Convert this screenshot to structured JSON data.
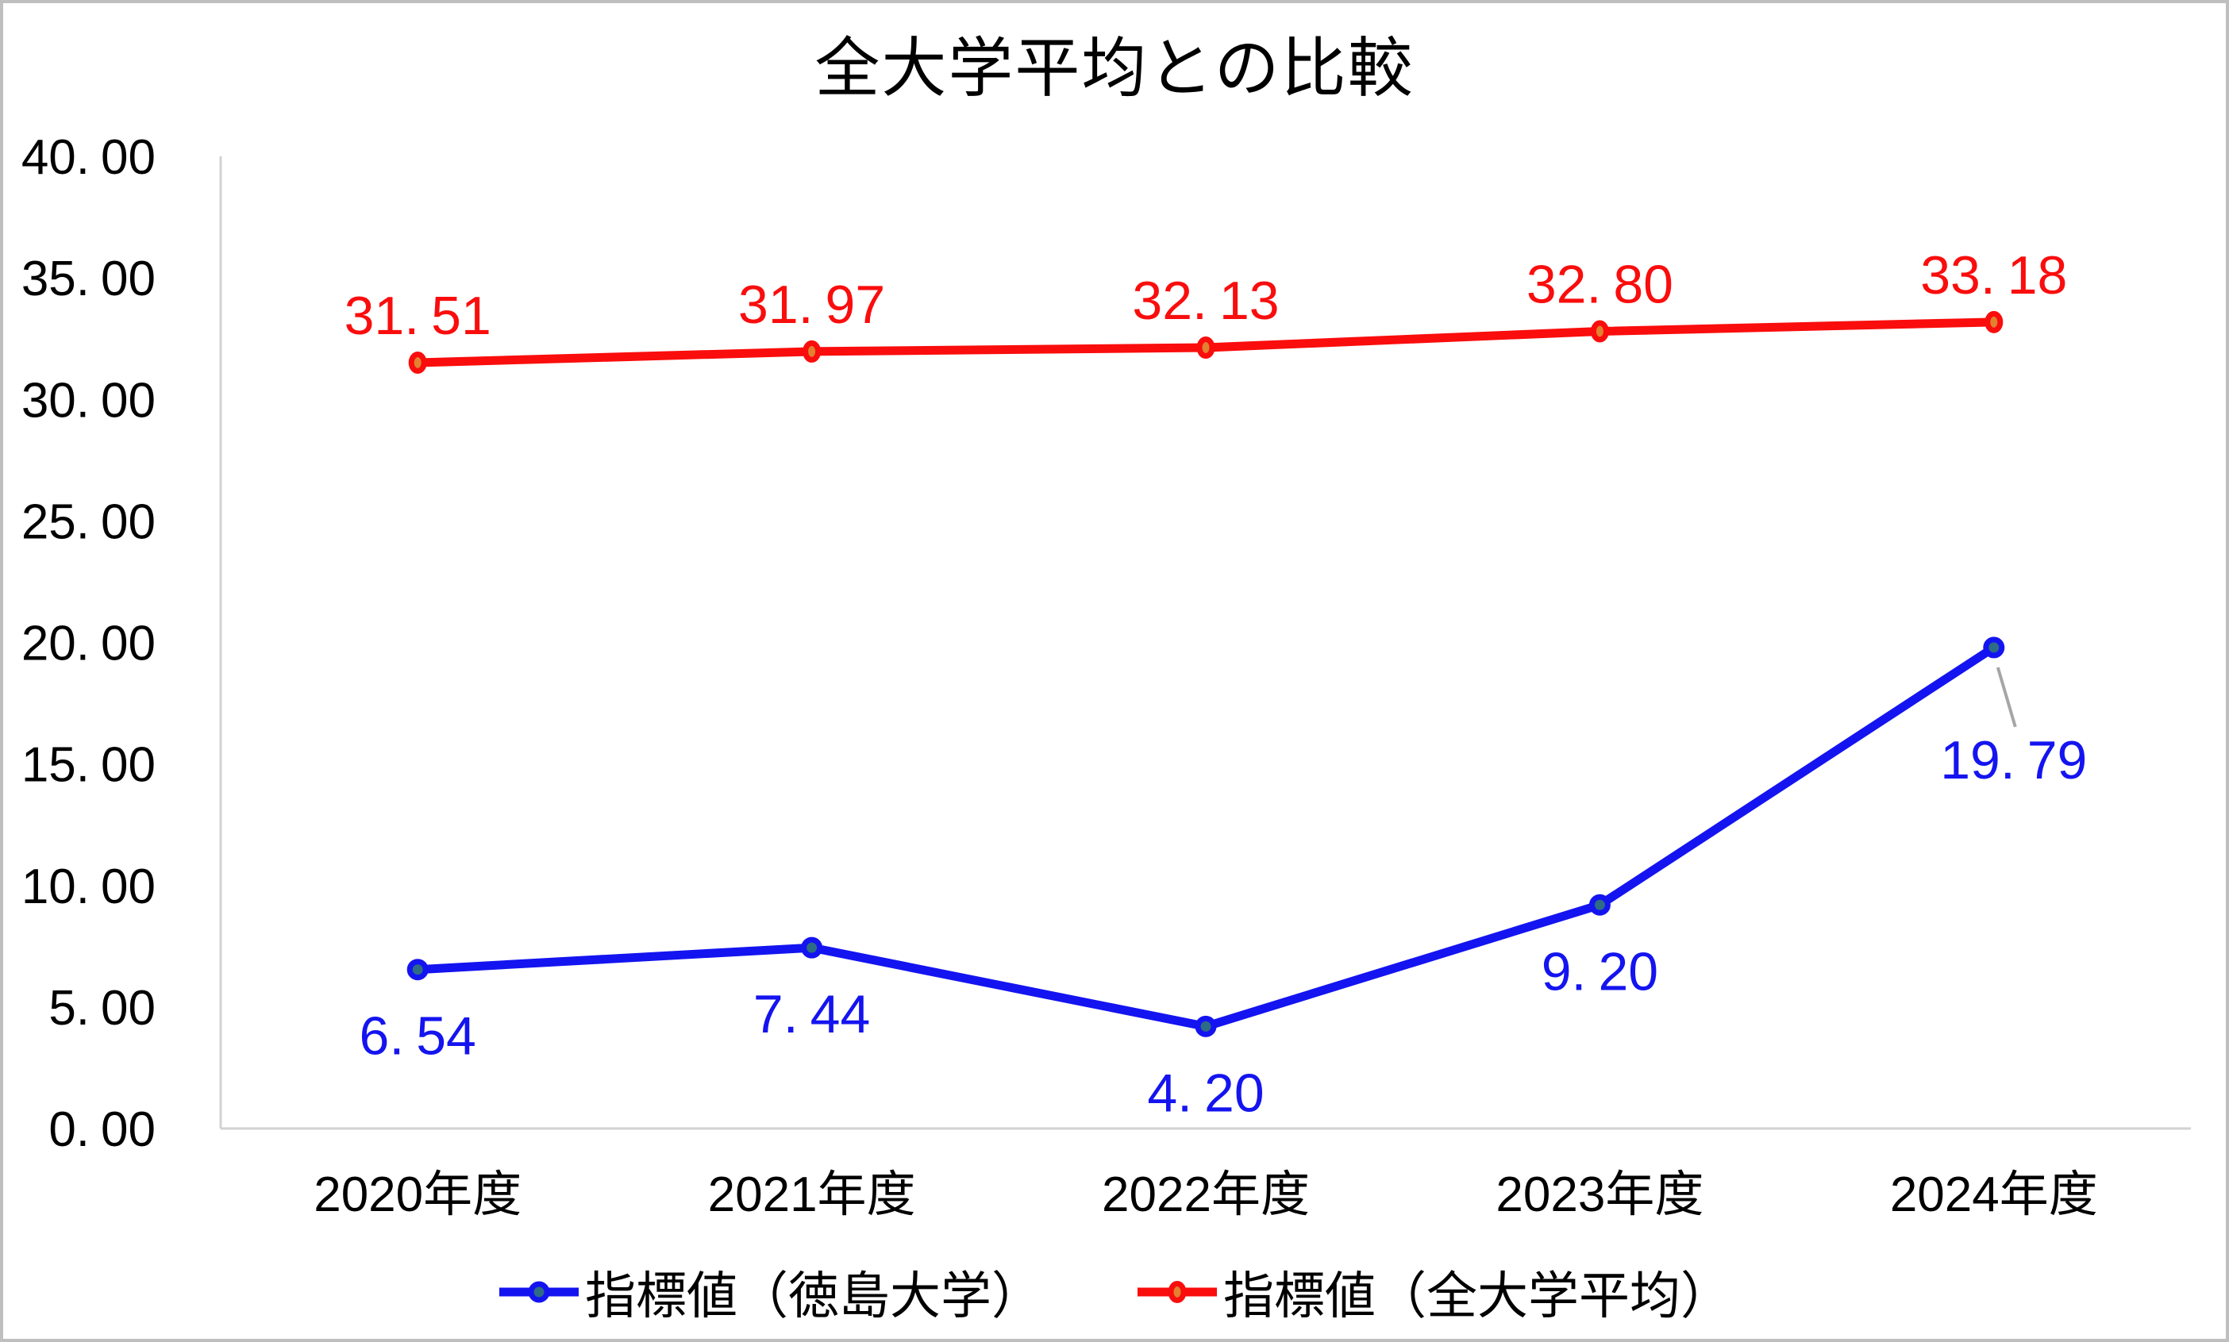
{
  "chart_data": {
    "type": "line",
    "title": "全大学平均との比較",
    "categories": [
      "2020年度",
      "2021年度",
      "2022年度",
      "2023年度",
      "2024年度"
    ],
    "series": [
      {
        "name": "指標値（徳島大学）",
        "values": [
          6.54,
          7.44,
          4.2,
          9.2,
          19.79
        ],
        "data_labels": [
          "6.54",
          "7.44",
          "4.20",
          "9.20",
          "19.79"
        ],
        "label_position": "below",
        "line_color": "#1414F0",
        "marker_fill": "#2E6B85",
        "marker_shape": "circle",
        "last_label_callout": true
      },
      {
        "name": "指標値（全大学平均）",
        "values": [
          31.51,
          31.97,
          32.13,
          32.8,
          33.18
        ],
        "data_labels": [
          "31.51",
          "31.97",
          "32.13",
          "32.80",
          "33.18"
        ],
        "label_position": "above",
        "line_color": "#FA0D0D",
        "marker_fill": "#E2812F",
        "marker_shape": "ellipse",
        "last_label_callout": false
      }
    ],
    "y_axis": {
      "min": 0,
      "max": 40,
      "step": 5,
      "tick_labels": [
        "0.00",
        "5.00",
        "10.00",
        "15.00",
        "20.00",
        "25.00",
        "30.00",
        "35.00",
        "40.00"
      ]
    },
    "x_axis": {
      "tick_labels": [
        "2020年度",
        "2021年度",
        "2022年度",
        "2023年度",
        "2024年度"
      ]
    },
    "grid": false,
    "legend_position": "bottom",
    "colors": {
      "axis_line": "#D2D2D2",
      "tick_text": "#000000",
      "leader_line": "#A6A6A6",
      "outer_border": "#BFBFBF"
    }
  }
}
